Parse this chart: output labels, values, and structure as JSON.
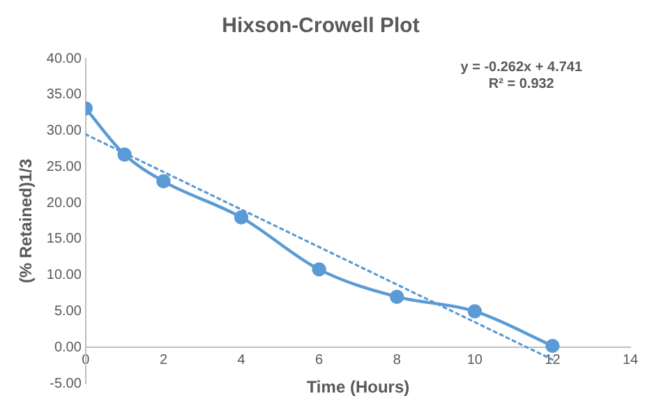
{
  "chart_data": {
    "type": "line",
    "title": "Hixson-Crowell Plot",
    "xlabel": "Time (Hours)",
    "ylabel": "(% Retained)1/3",
    "x": [
      0,
      1,
      2,
      4,
      6,
      8,
      10,
      12
    ],
    "series": [
      {
        "color": "#5b9bd5",
        "values": [
          33.1,
          26.7,
          23.0,
          18.0,
          10.8,
          7.0,
          5.0,
          0.2
        ],
        "marker": "circle",
        "line_style": "solid"
      },
      {
        "type": "line",
        "color": "#5b9bd5",
        "x": [
          0,
          12
        ],
        "values": [
          29.5,
          -1.7
        ],
        "marker": "none",
        "line_style": "dotted"
      }
    ],
    "xlim": [
      0,
      14
    ],
    "xticks": [
      0,
      2,
      4,
      6,
      8,
      10,
      12,
      14
    ],
    "ylim": [
      -5,
      40
    ],
    "yticks": [
      {
        "value": -5,
        "label": "-5.00"
      },
      {
        "value": 0,
        "label": "0.00"
      },
      {
        "value": 5,
        "label": "5.00"
      },
      {
        "value": 10,
        "label": "10.00"
      },
      {
        "value": 15,
        "label": "15.00"
      },
      {
        "value": 20,
        "label": "20.00"
      },
      {
        "value": 25,
        "label": "25.00"
      },
      {
        "value": 30,
        "label": "30.00"
      },
      {
        "value": 35,
        "label": "35.00"
      },
      {
        "value": 40,
        "label": "40.00"
      }
    ],
    "grid": false,
    "legend": false,
    "annotations": [
      "y = -0.262x + 4.741",
      "R² = 0.932"
    ]
  }
}
